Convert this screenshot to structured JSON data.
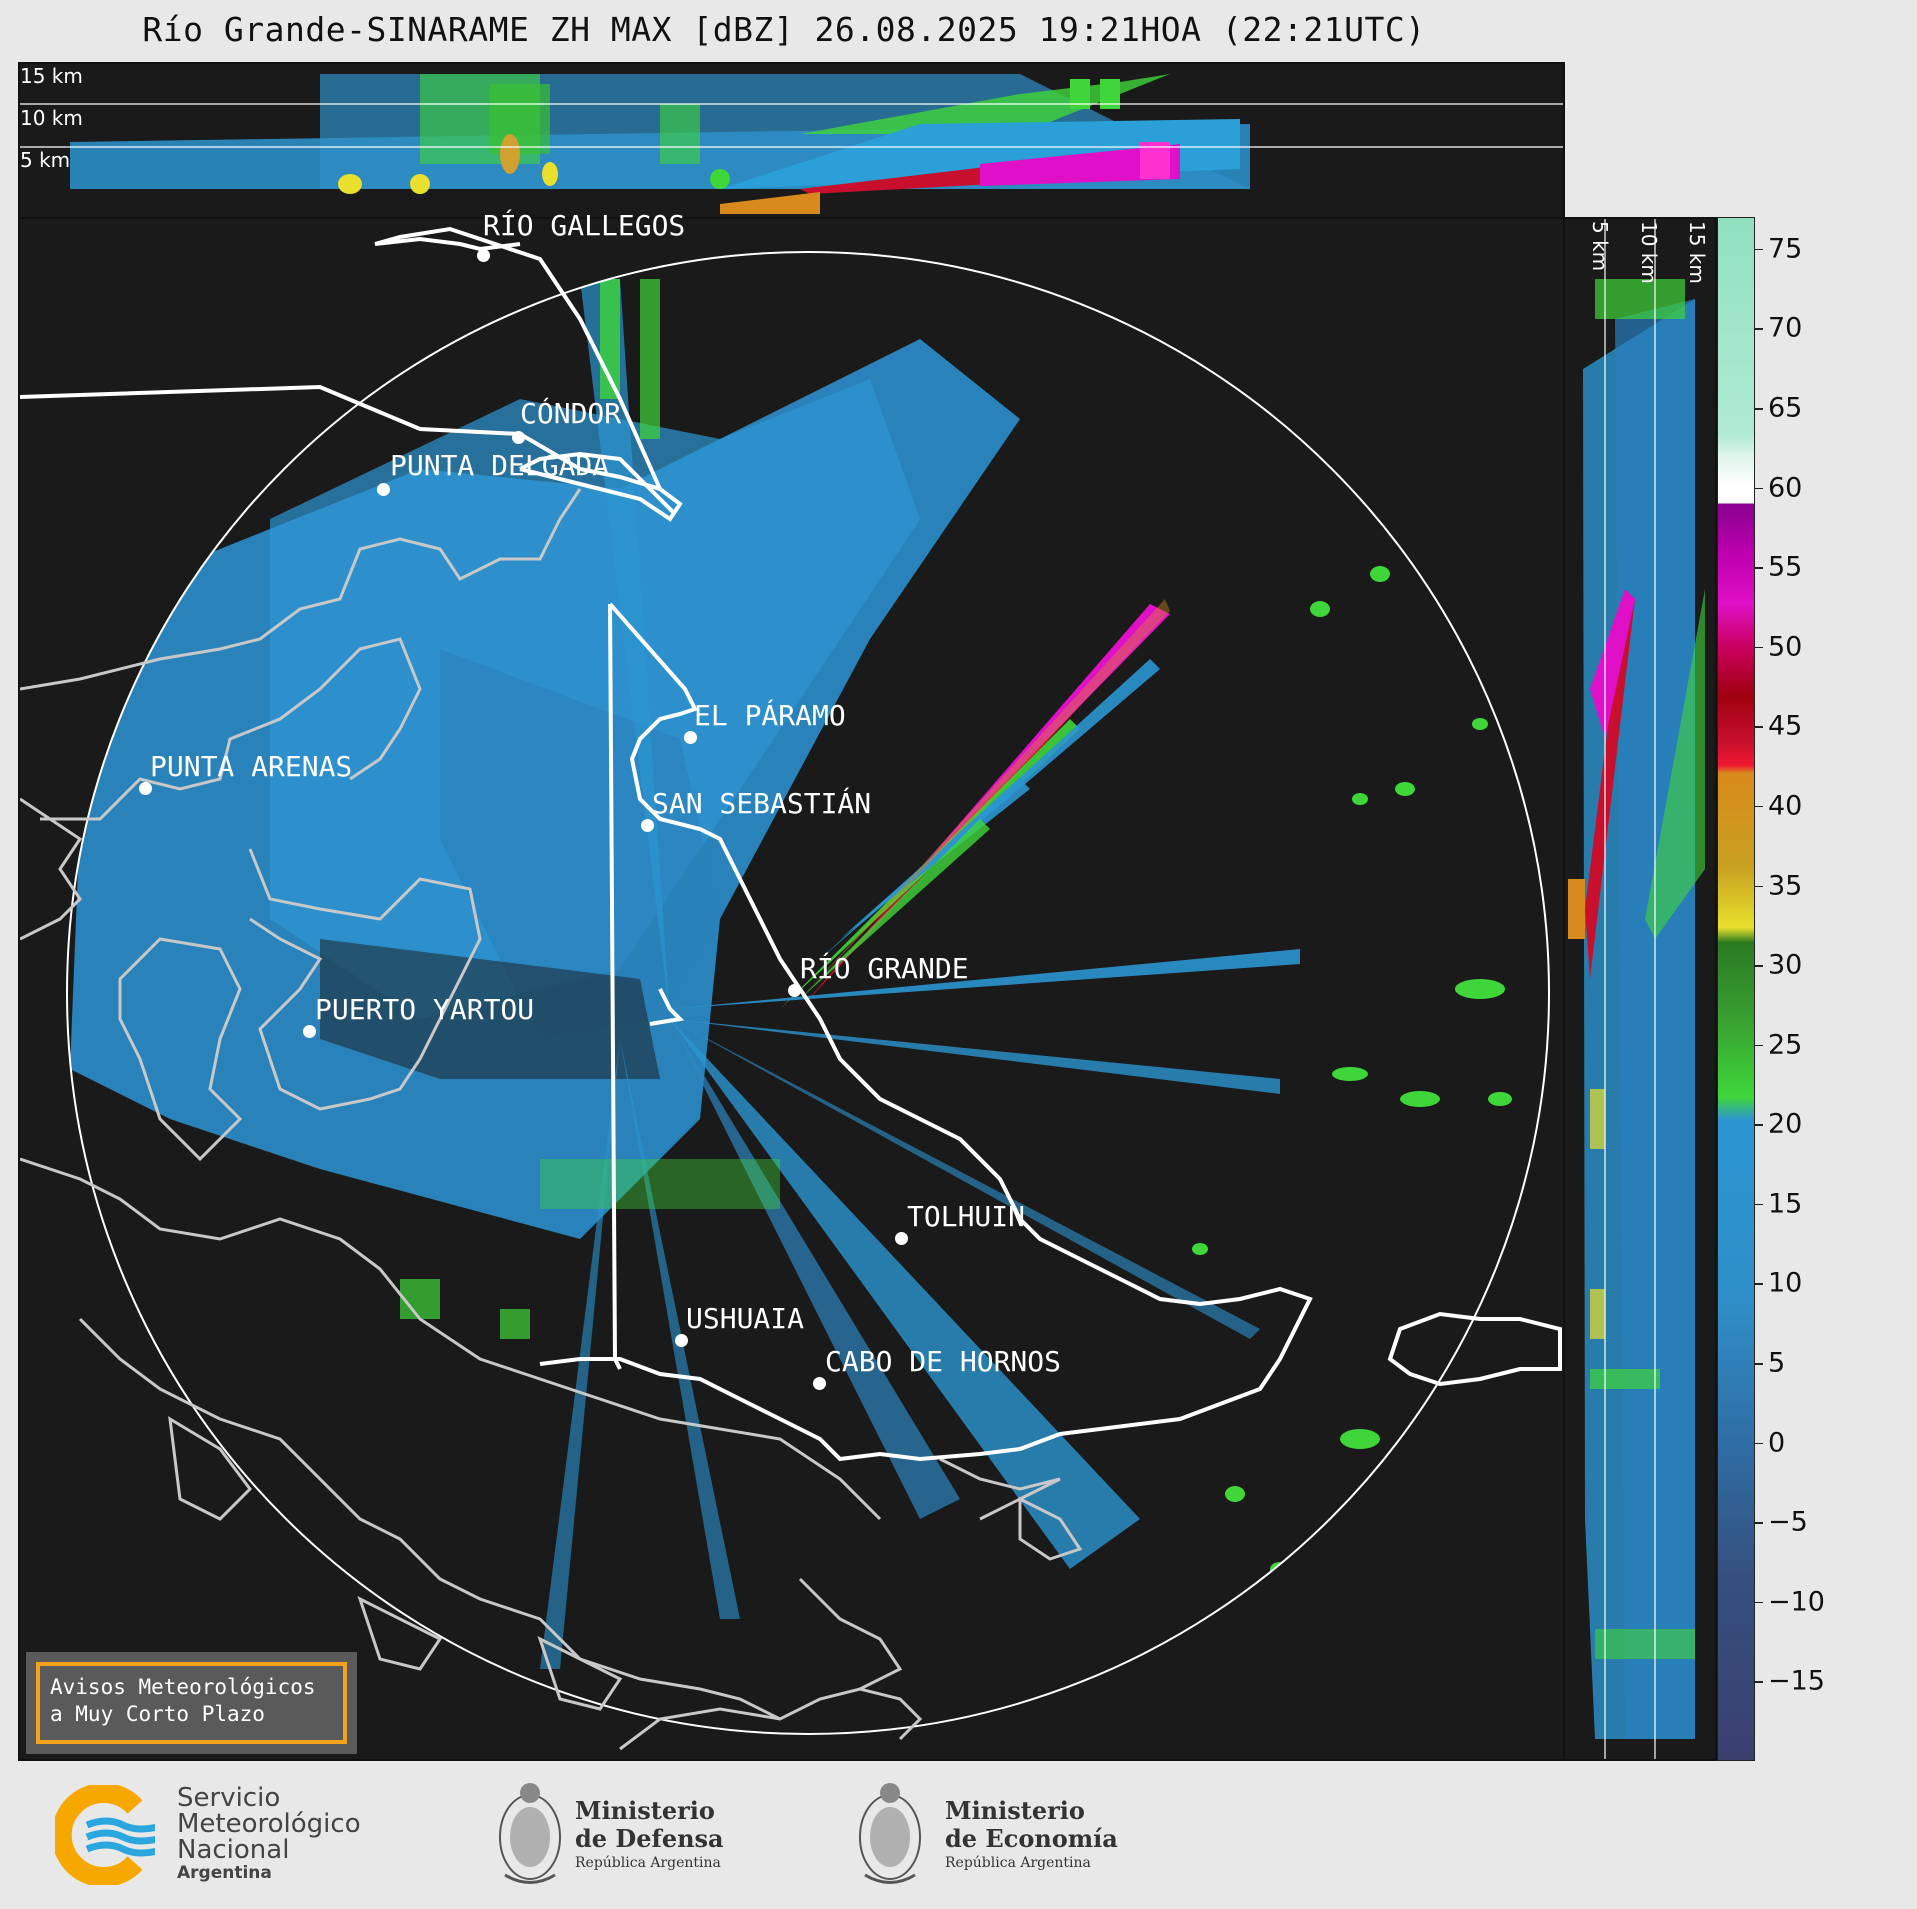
{
  "title": "Río Grande-SINARAME ZH MAX [dBZ] 26.08.2025 19:21HOA (22:21UTC)",
  "height_labels": [
    "15 km",
    "10 km",
    "5 km"
  ],
  "side_height_labels": [
    "5 km",
    "10 km",
    "15 km"
  ],
  "cities": [
    {
      "name": "RÍO GALLEGOS"
    },
    {
      "name": "CÓNDOR"
    },
    {
      "name": "PUNTA DELGADA"
    },
    {
      "name": "EL PÁRAMO"
    },
    {
      "name": "PUNTA ARENAS"
    },
    {
      "name": "SAN SEBASTIÁN"
    },
    {
      "name": "RÍO GRANDE"
    },
    {
      "name": "PUERTO YARTOU"
    },
    {
      "name": "TOLHUIN"
    },
    {
      "name": "USHUAIA"
    },
    {
      "name": "CABO DE HORNOS"
    }
  ],
  "notice": {
    "line1": "Avisos Meteorológicos",
    "line2": "a Muy Corto Plazo"
  },
  "colorbar": {
    "unit": "dBZ",
    "range": [
      -20,
      77
    ],
    "ticks": [
      "75",
      "70",
      "65",
      "60",
      "55",
      "50",
      "45",
      "40",
      "35",
      "30",
      "25",
      "20",
      "15",
      "10",
      "5",
      "0",
      "−5",
      "−10",
      "−15"
    ],
    "colors": {
      "neg": "#3a3f6e",
      "low": "#2f6ca3",
      "mid": "#2b95d0",
      "green": "#3fd63a",
      "darkgreen": "#2a7a22",
      "yellow": "#e8e02c",
      "orange": "#d98a1c",
      "red": "#c8102e",
      "magenta": "#e010c8",
      "purple": "#8a0090",
      "white": "#ffffff",
      "mint": "#8fe0c0"
    }
  },
  "logos": {
    "smn": {
      "line1": "Servicio",
      "line2": "Meteorológico",
      "line3": "Nacional",
      "line4": "Argentina"
    },
    "defensa": {
      "line1": "Ministerio",
      "line2": "de Defensa",
      "line3": "República Argentina"
    },
    "economia": {
      "line1": "Ministerio",
      "line2": "de Economía",
      "line3": "República Argentina"
    }
  }
}
